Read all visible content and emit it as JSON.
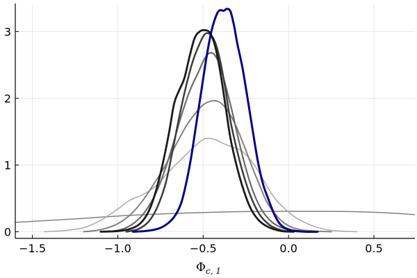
{
  "chart_data": {
    "type": "line",
    "title": "",
    "xlabel": "Φ",
    "xlabel_sub": "c, 1",
    "ylabel": "",
    "xlim": [
      -1.6,
      0.74
    ],
    "ylim": [
      -0.1,
      3.42
    ],
    "x_ticks": [
      -1.5,
      -1.0,
      -0.5,
      0.0,
      0.5
    ],
    "x_tick_labels": [
      "−1.5",
      "−1.0",
      "−0.5",
      "0.0",
      "0.5"
    ],
    "y_ticks": [
      0,
      1,
      2,
      3
    ],
    "y_tick_labels": [
      "0",
      "1",
      "2",
      "3"
    ],
    "grid": true,
    "legend": "none",
    "series": [
      {
        "color": "#808080",
        "opacity": 1,
        "width": 1.5,
        "points": [
          [
            -1.6,
            0.14
          ],
          [
            -1.4,
            0.17
          ],
          [
            -1.2,
            0.2
          ],
          [
            -1.0,
            0.235
          ],
          [
            -0.8,
            0.26
          ],
          [
            -0.6,
            0.28
          ],
          [
            -0.4,
            0.295
          ],
          [
            -0.2,
            0.303
          ],
          [
            0.0,
            0.305
          ],
          [
            0.2,
            0.305
          ],
          [
            0.4,
            0.3
          ],
          [
            0.6,
            0.28
          ],
          [
            0.74,
            0.255
          ]
        ]
      },
      {
        "color": "#a9a9a9",
        "opacity": 1,
        "width": 1.5,
        "points": [
          [
            -1.43,
            0.0
          ],
          [
            -1.3,
            0.02
          ],
          [
            -1.2,
            0.06
          ],
          [
            -1.1,
            0.17
          ],
          [
            -1.0,
            0.34
          ],
          [
            -0.93,
            0.47
          ],
          [
            -0.85,
            0.56
          ],
          [
            -0.78,
            0.68
          ],
          [
            -0.7,
            0.9
          ],
          [
            -0.63,
            1.08
          ],
          [
            -0.55,
            1.28
          ],
          [
            -0.5,
            1.38
          ],
          [
            -0.47,
            1.4
          ],
          [
            -0.43,
            1.38
          ],
          [
            -0.38,
            1.32
          ],
          [
            -0.33,
            1.27
          ],
          [
            -0.28,
            1.22
          ],
          [
            -0.23,
            1.1
          ],
          [
            -0.18,
            0.92
          ],
          [
            -0.13,
            0.7
          ],
          [
            -0.08,
            0.5
          ],
          [
            -0.02,
            0.34
          ],
          [
            0.05,
            0.2
          ],
          [
            0.15,
            0.08
          ],
          [
            0.25,
            0.02
          ],
          [
            0.4,
            0.0
          ]
        ]
      },
      {
        "color": "#808080",
        "opacity": 1,
        "width": 2,
        "points": [
          [
            -1.2,
            0.0
          ],
          [
            -1.1,
            0.03
          ],
          [
            -1.0,
            0.12
          ],
          [
            -0.92,
            0.27
          ],
          [
            -0.85,
            0.48
          ],
          [
            -0.78,
            0.75
          ],
          [
            -0.72,
            1.0
          ],
          [
            -0.66,
            1.3
          ],
          [
            -0.6,
            1.58
          ],
          [
            -0.55,
            1.76
          ],
          [
            -0.5,
            1.9
          ],
          [
            -0.45,
            1.96
          ],
          [
            -0.41,
            1.95
          ],
          [
            -0.37,
            1.86
          ],
          [
            -0.33,
            1.7
          ],
          [
            -0.29,
            1.48
          ],
          [
            -0.25,
            1.22
          ],
          [
            -0.21,
            0.95
          ],
          [
            -0.17,
            0.7
          ],
          [
            -0.13,
            0.46
          ],
          [
            -0.08,
            0.27
          ],
          [
            -0.02,
            0.12
          ],
          [
            0.05,
            0.04
          ],
          [
            0.15,
            0.01
          ],
          [
            0.25,
            0.0
          ]
        ]
      },
      {
        "color": "#6b6b6b",
        "opacity": 1,
        "width": 2.2,
        "points": [
          [
            -1.05,
            0.0
          ],
          [
            -0.97,
            0.04
          ],
          [
            -0.9,
            0.14
          ],
          [
            -0.84,
            0.3
          ],
          [
            -0.78,
            0.56
          ],
          [
            -0.73,
            0.88
          ],
          [
            -0.68,
            1.28
          ],
          [
            -0.63,
            1.72
          ],
          [
            -0.58,
            2.1
          ],
          [
            -0.53,
            2.38
          ],
          [
            -0.49,
            2.6
          ],
          [
            -0.46,
            2.68
          ],
          [
            -0.43,
            2.64
          ],
          [
            -0.4,
            2.48
          ],
          [
            -0.37,
            2.2
          ],
          [
            -0.33,
            1.8
          ],
          [
            -0.29,
            1.35
          ],
          [
            -0.25,
            0.95
          ],
          [
            -0.21,
            0.62
          ],
          [
            -0.16,
            0.34
          ],
          [
            -0.1,
            0.15
          ],
          [
            -0.03,
            0.05
          ],
          [
            0.05,
            0.0
          ]
        ]
      },
      {
        "color": "#3c3c3c",
        "opacity": 1,
        "width": 2.5,
        "points": [
          [
            -0.95,
            0.0
          ],
          [
            -0.88,
            0.04
          ],
          [
            -0.82,
            0.15
          ],
          [
            -0.77,
            0.36
          ],
          [
            -0.72,
            0.72
          ],
          [
            -0.68,
            1.2
          ],
          [
            -0.64,
            1.72
          ],
          [
            -0.6,
            2.18
          ],
          [
            -0.56,
            2.56
          ],
          [
            -0.52,
            2.82
          ],
          [
            -0.49,
            2.96
          ],
          [
            -0.46,
            2.96
          ],
          [
            -0.43,
            2.84
          ],
          [
            -0.4,
            2.56
          ],
          [
            -0.37,
            2.14
          ],
          [
            -0.34,
            1.66
          ],
          [
            -0.3,
            1.2
          ],
          [
            -0.26,
            0.82
          ],
          [
            -0.22,
            0.52
          ],
          [
            -0.17,
            0.26
          ],
          [
            -0.11,
            0.1
          ],
          [
            -0.04,
            0.02
          ],
          [
            0.03,
            0.0
          ]
        ]
      },
      {
        "color": "#1a1a1a",
        "opacity": 1,
        "width": 2.8,
        "points": [
          [
            -1.1,
            0.0
          ],
          [
            -1.0,
            0.01
          ],
          [
            -0.93,
            0.04
          ],
          [
            -0.87,
            0.12
          ],
          [
            -0.82,
            0.3
          ],
          [
            -0.78,
            0.58
          ],
          [
            -0.74,
            0.98
          ],
          [
            -0.7,
            1.48
          ],
          [
            -0.67,
            1.92
          ],
          [
            -0.64,
            2.12
          ],
          [
            -0.61,
            2.3
          ],
          [
            -0.58,
            2.62
          ],
          [
            -0.55,
            2.9
          ],
          [
            -0.52,
            3.0
          ],
          [
            -0.49,
            3.02
          ],
          [
            -0.46,
            2.98
          ],
          [
            -0.43,
            2.78
          ],
          [
            -0.4,
            2.4
          ],
          [
            -0.37,
            1.9
          ],
          [
            -0.34,
            1.4
          ],
          [
            -0.3,
            0.95
          ],
          [
            -0.26,
            0.6
          ],
          [
            -0.22,
            0.34
          ],
          [
            -0.17,
            0.16
          ],
          [
            -0.11,
            0.06
          ],
          [
            -0.04,
            0.01
          ],
          [
            0.03,
            0.0
          ]
        ]
      },
      {
        "color": "#00008b",
        "opacity": 1,
        "width": 3,
        "points": [
          [
            -0.91,
            0.0
          ],
          [
            -0.84,
            0.01
          ],
          [
            -0.77,
            0.04
          ],
          [
            -0.72,
            0.1
          ],
          [
            -0.67,
            0.22
          ],
          [
            -0.63,
            0.42
          ],
          [
            -0.6,
            0.72
          ],
          [
            -0.57,
            1.12
          ],
          [
            -0.54,
            1.62
          ],
          [
            -0.51,
            2.12
          ],
          [
            -0.48,
            2.62
          ],
          [
            -0.45,
            3.02
          ],
          [
            -0.42,
            3.26
          ],
          [
            -0.4,
            3.32
          ],
          [
            -0.38,
            3.31
          ],
          [
            -0.36,
            3.34
          ],
          [
            -0.34,
            3.3
          ],
          [
            -0.32,
            3.1
          ],
          [
            -0.3,
            2.82
          ],
          [
            -0.27,
            2.46
          ],
          [
            -0.24,
            2.0
          ],
          [
            -0.21,
            1.52
          ],
          [
            -0.18,
            1.06
          ],
          [
            -0.15,
            0.72
          ],
          [
            -0.12,
            0.5
          ],
          [
            -0.09,
            0.3
          ],
          [
            -0.06,
            0.15
          ],
          [
            -0.03,
            0.07
          ],
          [
            0.02,
            0.02
          ],
          [
            0.1,
            0.0
          ],
          [
            0.17,
            0.0
          ]
        ]
      }
    ]
  }
}
